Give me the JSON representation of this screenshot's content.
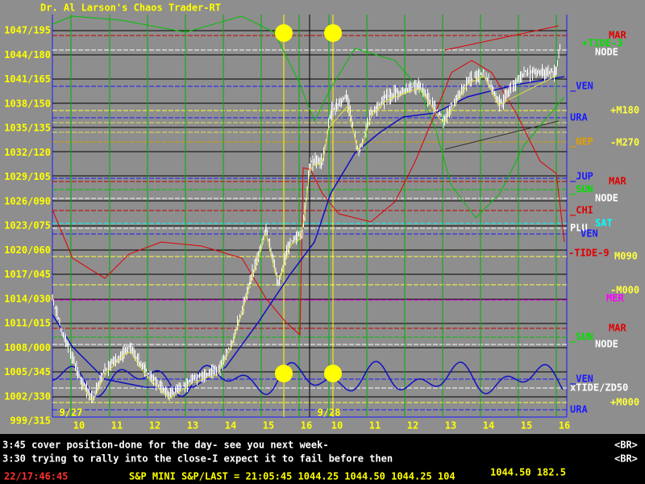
{
  "title": "Dr. Al Larson's Chaos Trader-RT",
  "y_axis_labels": [
    "1047/195",
    "1044/180",
    "1041/165",
    "1038/150",
    "1035/135",
    "1032/120",
    "1029/105",
    "1026/090",
    "1023/075",
    "1020/060",
    "1017/045",
    "1014/030",
    "1011/015",
    "1008/000",
    "1005/345",
    "1002/330",
    "999/315"
  ],
  "x_axis_labels": [
    "10",
    "11",
    "12",
    "13",
    "14",
    "15",
    "16",
    "10",
    "11",
    "12",
    "13",
    "14",
    "15",
    "16"
  ],
  "date_labels": [
    "9/27",
    "9/28"
  ],
  "right_labels": [
    "MAR",
    "+TIDE-3",
    "NODE",
    "_VEN",
    "+M180",
    "URA",
    "_NEP",
    "-M270",
    "_JUP",
    "MAR",
    "_SUN",
    "NODE",
    "_CHI",
    "SAT",
    "PLU",
    "VEN",
    "-TIDE-9",
    "M090",
    "-M000",
    "MER",
    "MAR",
    "_SUN",
    "NODE",
    "_VEN",
    "xTIDE/ZD50",
    "+M000",
    "URA"
  ],
  "messages": [
    {
      "text": "3:45 cover position-done for the day- see you next week-",
      "tag": "<BR>"
    },
    {
      "text": "3:30 trying to rally into the close-I expect it to fail before then",
      "tag": "<BR>"
    }
  ],
  "status": {
    "time": "22/17:46:45",
    "quote": "S&P MINI S&P/LAST = 21:05:45 1044.25 1044.50 1044.25 104",
    "big": "1044.50 182.5"
  }
}
